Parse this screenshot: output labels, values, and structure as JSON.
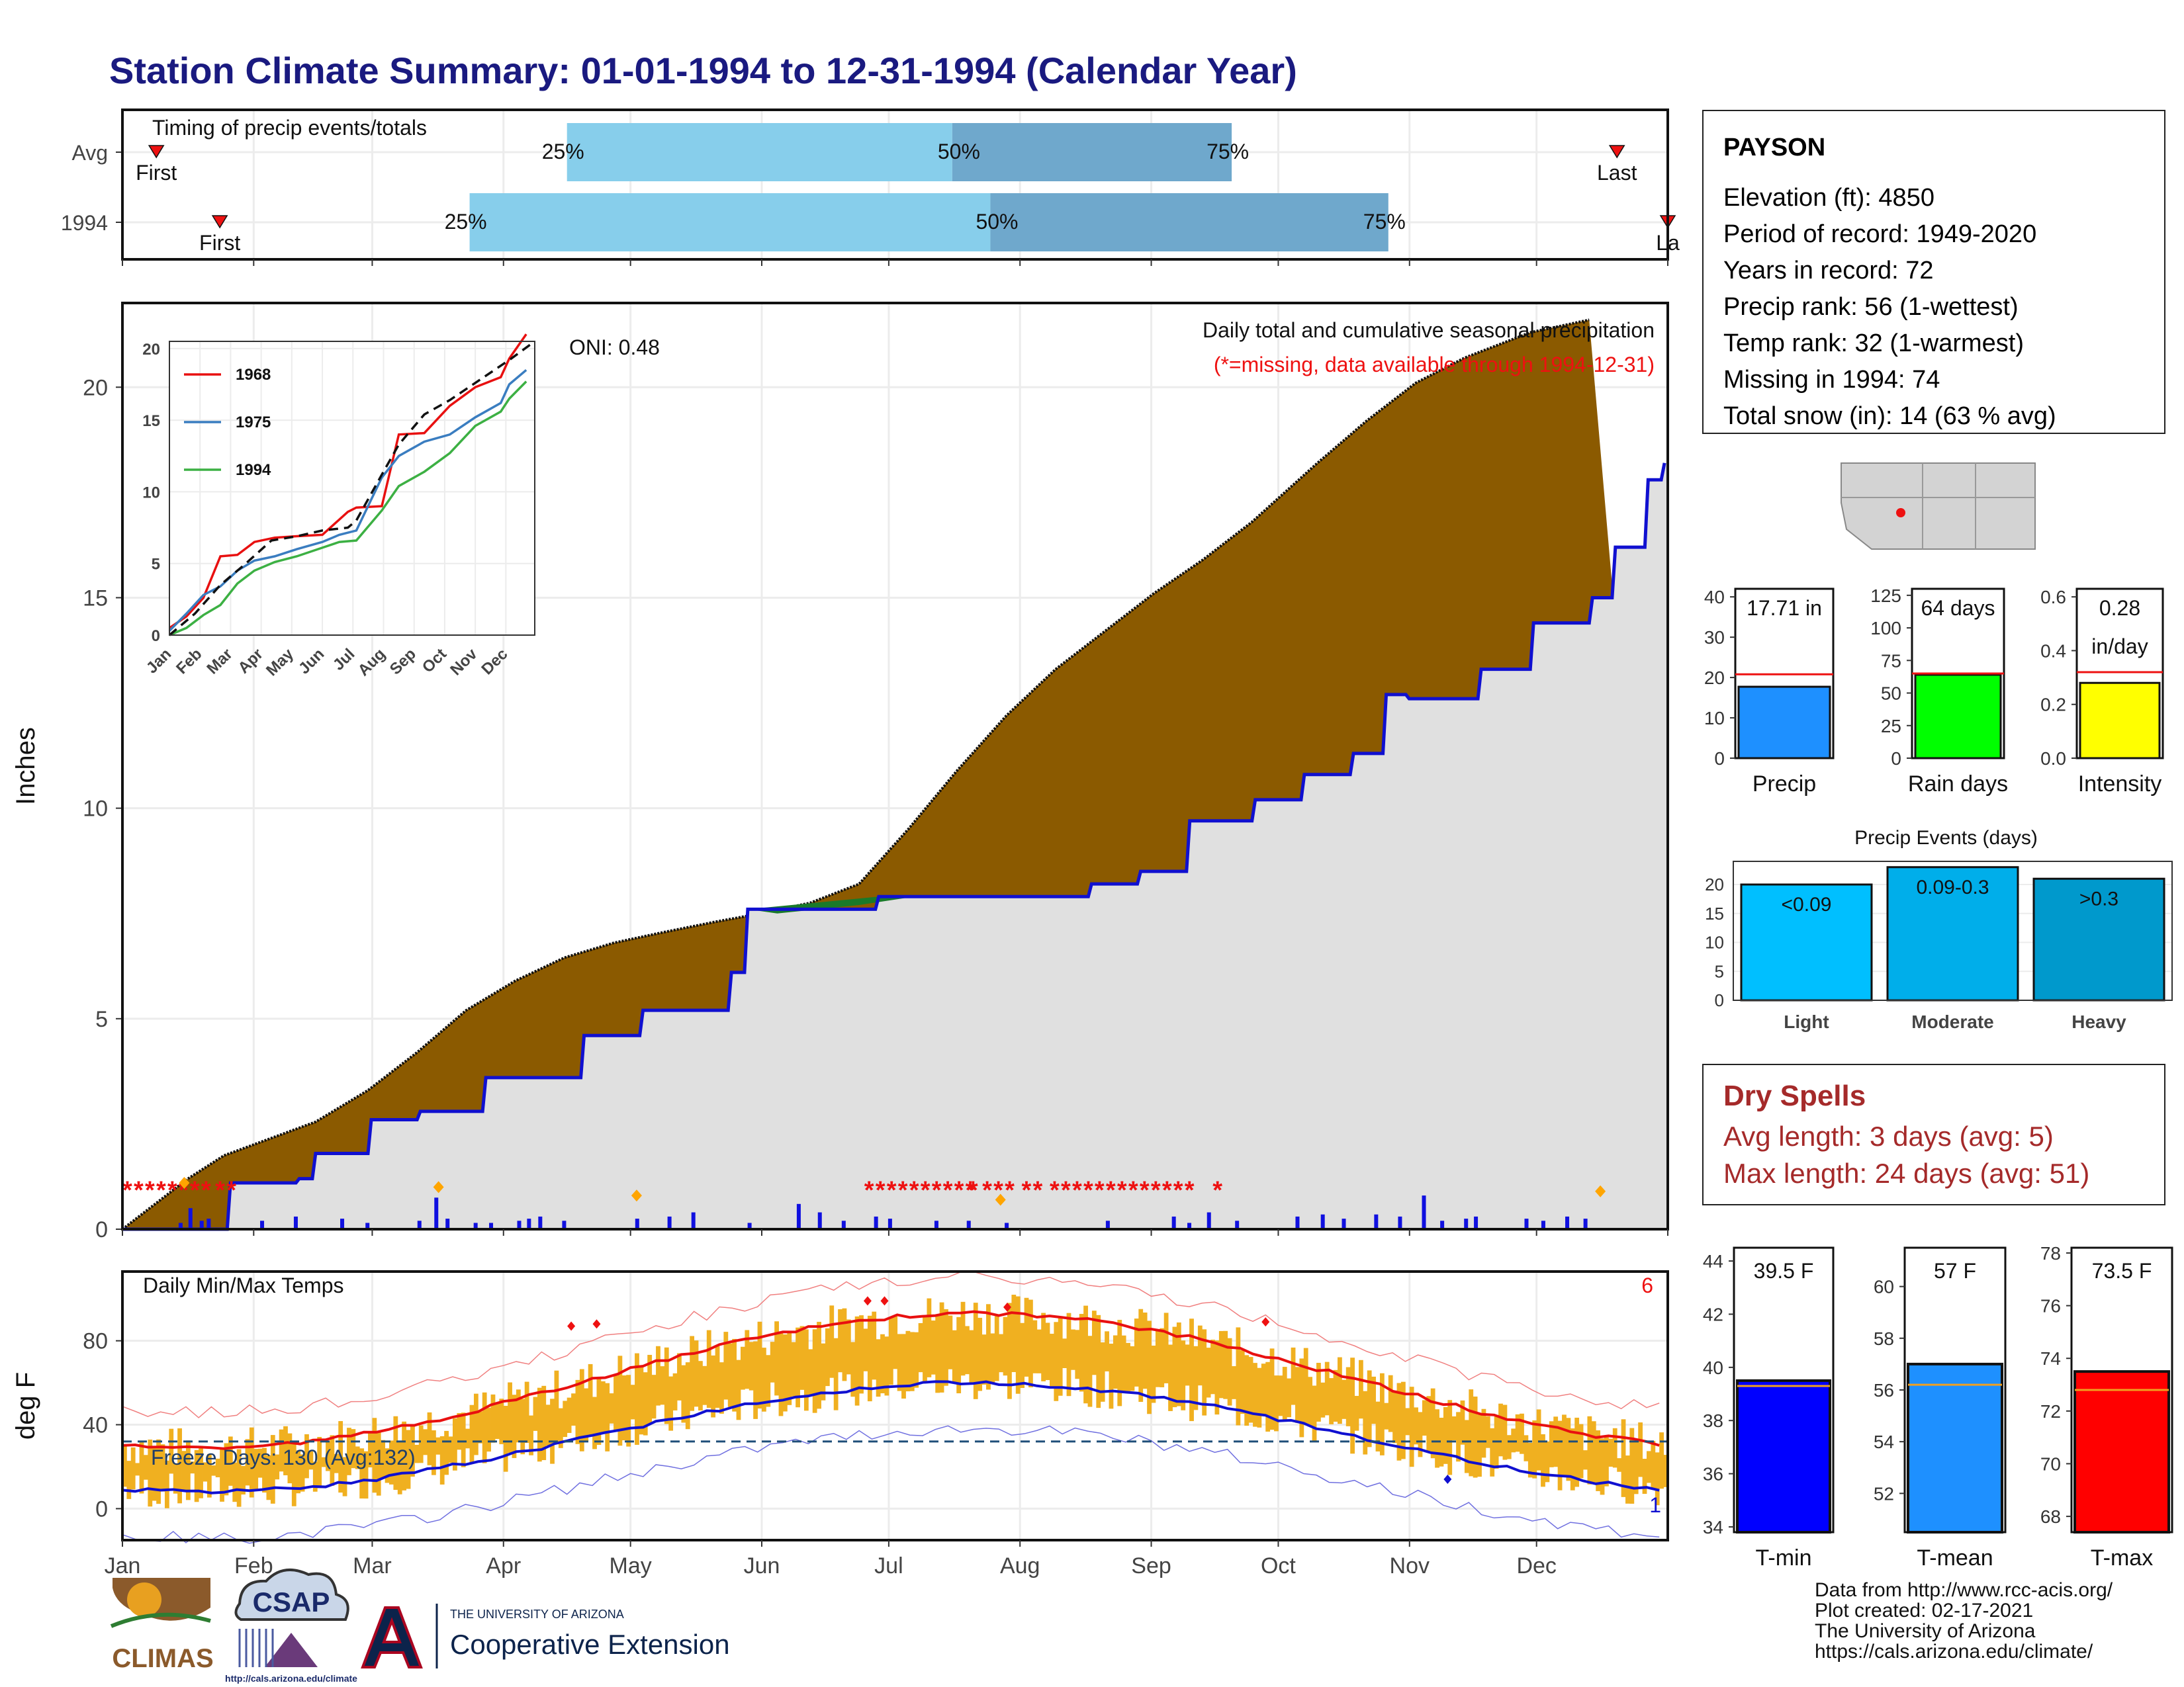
{
  "page_title": "Station Climate Summary: 01-01-1994 to 12-31-1994 (Calendar Year)",
  "colors": {
    "title": "#1a1a80",
    "precip_area": "#8b5a00",
    "cum_line": "#1010d0",
    "grid": "#ebebeb",
    "tmax_bar": "#f0b020",
    "tmax_avg": "#e81010",
    "tmin_avg": "#1010d0",
    "light_blue": "#87ceeb",
    "steel_blue": "#6fa8cc",
    "dry_spell": "#a52a2a",
    "missing": "#ee1111"
  },
  "chart_data": [
    {
      "id": "timing",
      "type": "bar",
      "title": "Timing of precip events/totals",
      "rows": [
        {
          "label": "Avg",
          "first": "First",
          "last": "Last",
          "q25_day": 105,
          "q50_day": 196,
          "q75_day": 262,
          "first_day": 8,
          "last_day": 353
        },
        {
          "label": "1994",
          "first": "First",
          "last": "La",
          "q25_day": 82,
          "q50_day": 205,
          "q75_day": 299,
          "first_day": 23,
          "last_day": 365
        }
      ],
      "pct_labels": [
        "25%",
        "50%",
        "75%"
      ]
    },
    {
      "id": "cumulative",
      "type": "area",
      "ylabel": "Inches",
      "ylim": [
        0,
        22
      ],
      "yticks": [
        0,
        5,
        10,
        15,
        20
      ],
      "annotation_main": "Daily total and cumulative seasonal precipitation",
      "annotation_missing": "(*=missing, data available through 1994-12-31)",
      "oni": "ONI: 0.48",
      "avg_cumulative": [
        [
          0,
          0
        ],
        [
          10,
          0.6
        ],
        [
          20,
          1.2
        ],
        [
          31,
          1.75
        ],
        [
          45,
          2.15
        ],
        [
          59,
          2.55
        ],
        [
          75,
          3.3
        ],
        [
          90,
          4.2
        ],
        [
          105,
          5.2
        ],
        [
          120,
          5.9
        ],
        [
          135,
          6.45
        ],
        [
          150,
          6.8
        ],
        [
          165,
          7.05
        ],
        [
          181,
          7.3
        ],
        [
          195,
          7.5
        ],
        [
          210,
          7.75
        ],
        [
          225,
          8.2
        ],
        [
          240,
          9.5
        ],
        [
          255,
          10.9
        ],
        [
          270,
          12.2
        ],
        [
          285,
          13.3
        ],
        [
          300,
          14.2
        ],
        [
          315,
          15.1
        ],
        [
          330,
          15.9
        ],
        [
          345,
          16.8
        ],
        [
          365,
          18.2
        ],
        [
          380,
          19.2
        ],
        [
          395,
          20.1
        ],
        [
          410,
          20.7
        ],
        [
          430,
          21.3
        ],
        [
          448,
          21.6
        ]
      ],
      "year_cumulative": [
        [
          0,
          0
        ],
        [
          32,
          0
        ],
        [
          33,
          1.1
        ],
        [
          53,
          1.1
        ],
        [
          54,
          1.2
        ],
        [
          58,
          1.2
        ],
        [
          59,
          1.8
        ],
        [
          75,
          1.8
        ],
        [
          76,
          2.6
        ],
        [
          90,
          2.6
        ],
        [
          91,
          2.8
        ],
        [
          110,
          2.8
        ],
        [
          111,
          3.6
        ],
        [
          140,
          3.6
        ],
        [
          141,
          4.6
        ],
        [
          158,
          4.6
        ],
        [
          159,
          5.2
        ],
        [
          185,
          5.2
        ],
        [
          186,
          6.1
        ],
        [
          190,
          6.1
        ],
        [
          191,
          7.6
        ],
        [
          230,
          7.6
        ],
        [
          231,
          7.9
        ],
        [
          295,
          7.9
        ],
        [
          296,
          8.2
        ],
        [
          310,
          8.2
        ],
        [
          311,
          8.5
        ],
        [
          325,
          8.5
        ],
        [
          326,
          9.7
        ],
        [
          345,
          9.7
        ],
        [
          346,
          10.2
        ],
        [
          360,
          10.2
        ],
        [
          361,
          10.8
        ],
        [
          375,
          10.8
        ],
        [
          376,
          11.3
        ],
        [
          385,
          11.3
        ],
        [
          386,
          12.7
        ],
        [
          392,
          12.7
        ],
        [
          393,
          12.6
        ],
        [
          414,
          12.6
        ],
        [
          415,
          13.3
        ],
        [
          430,
          13.3
        ],
        [
          431,
          14.4
        ],
        [
          448,
          14.4
        ],
        [
          449,
          15.0
        ],
        [
          455,
          15.0
        ],
        [
          456,
          16.2
        ],
        [
          465,
          16.2
        ],
        [
          466,
          17.8
        ],
        [
          470,
          17.8
        ],
        [
          471,
          18.2
        ]
      ],
      "daily_bars": [
        [
          40,
          0.15
        ],
        [
          47,
          0.5
        ],
        [
          55,
          0.2
        ],
        [
          60,
          0.25
        ],
        [
          98,
          0.2
        ],
        [
          122,
          0.3
        ],
        [
          155,
          0.25
        ],
        [
          173,
          0.15
        ],
        [
          210,
          0.2
        ],
        [
          222,
          0.75
        ],
        [
          230,
          0.25
        ],
        [
          250,
          0.15
        ],
        [
          261,
          0.15
        ],
        [
          281,
          0.2
        ],
        [
          288,
          0.25
        ],
        [
          296,
          0.3
        ],
        [
          313,
          0.2
        ],
        [
          365,
          0.25
        ],
        [
          388,
          0.3
        ],
        [
          405,
          0.4
        ],
        [
          445,
          0.15
        ],
        [
          480,
          0.6
        ],
        [
          495,
          0.4
        ],
        [
          512,
          0.2
        ],
        [
          535,
          0.3
        ],
        [
          545,
          0.25
        ],
        [
          578,
          0.2
        ],
        [
          601,
          0.2
        ],
        [
          628,
          0.15
        ],
        [
          700,
          0.2
        ],
        [
          747,
          0.3
        ],
        [
          758,
          0.15
        ],
        [
          772,
          0.4
        ],
        [
          792,
          0.2
        ],
        [
          835,
          0.3
        ],
        [
          853,
          0.35
        ],
        [
          868,
          0.25
        ],
        [
          891,
          0.35
        ],
        [
          908,
          0.3
        ],
        [
          925,
          0.8
        ],
        [
          938,
          0.2
        ],
        [
          955,
          0.25
        ],
        [
          962,
          0.3
        ],
        [
          998,
          0.25
        ],
        [
          1010,
          0.2
        ],
        [
          1027,
          0.3
        ],
        [
          1040,
          0.25
        ]
      ],
      "missing_runs": [
        [
          0,
          60
        ],
        [
          66,
          80
        ],
        [
          528,
          560
        ],
        [
          568,
          600
        ],
        [
          602,
          608
        ],
        [
          612,
          632
        ],
        [
          640,
          648
        ],
        [
          660,
          725
        ],
        [
          732,
          760
        ],
        [
          776,
          782
        ]
      ],
      "diamonds": [
        [
          44,
          1.1
        ],
        [
          225,
          1.0
        ],
        [
          366,
          0.8
        ],
        [
          625,
          0.7
        ],
        [
          1052,
          0.9
        ]
      ]
    },
    {
      "id": "inset",
      "type": "line",
      "series": [
        {
          "name": "1968",
          "color": "#e81010",
          "values": [
            [
              0,
              0.5
            ],
            [
              10,
              1.3
            ],
            [
              20,
              2.6
            ],
            [
              30,
              5.5
            ],
            [
              40,
              5.6
            ],
            [
              50,
              6.5
            ],
            [
              62,
              6.8
            ],
            [
              75,
              6.9
            ],
            [
              90,
              7
            ],
            [
              105,
              8.6
            ],
            [
              110,
              8.9
            ],
            [
              125,
              9
            ],
            [
              135,
              14
            ],
            [
              150,
              14.1
            ],
            [
              165,
              16
            ],
            [
              180,
              17.3
            ],
            [
              195,
              18
            ],
            [
              200,
              19.3
            ],
            [
              210,
              21
            ]
          ]
        },
        {
          "name": "1975",
          "color": "#3a7dc0",
          "values": [
            [
              0,
              0.3
            ],
            [
              10,
              1.5
            ],
            [
              20,
              2.8
            ],
            [
              30,
              3.4
            ],
            [
              40,
              4.5
            ],
            [
              50,
              5.2
            ],
            [
              62,
              5.5
            ],
            [
              75,
              6
            ],
            [
              90,
              6.5
            ],
            [
              100,
              7
            ],
            [
              110,
              7.3
            ],
            [
              125,
              11
            ],
            [
              135,
              12.5
            ],
            [
              150,
              13.5
            ],
            [
              165,
              14
            ],
            [
              180,
              15.2
            ],
            [
              195,
              16.2
            ],
            [
              200,
              17.5
            ],
            [
              210,
              18.5
            ]
          ]
        },
        {
          "name": "1994",
          "color": "#3cb043",
          "values": [
            [
              0,
              0
            ],
            [
              10,
              0.5
            ],
            [
              20,
              1.4
            ],
            [
              30,
              2.1
            ],
            [
              40,
              3.6
            ],
            [
              50,
              4.5
            ],
            [
              62,
              5.1
            ],
            [
              75,
              5.5
            ],
            [
              90,
              6.1
            ],
            [
              100,
              6.5
            ],
            [
              110,
              6.6
            ],
            [
              125,
              8.7
            ],
            [
              135,
              10.4
            ],
            [
              150,
              11.4
            ],
            [
              165,
              12.7
            ],
            [
              180,
              14.6
            ],
            [
              195,
              15.6
            ],
            [
              200,
              16.5
            ],
            [
              210,
              17.7
            ]
          ]
        }
      ],
      "avg": [
        [
          0,
          0
        ],
        [
          15,
          1.5
        ],
        [
          30,
          3.5
        ],
        [
          45,
          5
        ],
        [
          60,
          6.6
        ],
        [
          75,
          6.9
        ],
        [
          90,
          7.3
        ],
        [
          105,
          7.5
        ],
        [
          110,
          8
        ],
        [
          125,
          11.2
        ],
        [
          135,
          13.3
        ],
        [
          150,
          15.4
        ],
        [
          165,
          16.4
        ],
        [
          180,
          17.6
        ],
        [
          200,
          19.2
        ],
        [
          215,
          20.5
        ]
      ],
      "xticks": [
        "Jan",
        "Feb",
        "Mar",
        "Apr",
        "May",
        "Jun",
        "Jul",
        "Aug",
        "Sep",
        "Oct",
        "Nov",
        "Dec"
      ],
      "yticks": [
        0,
        5,
        10,
        15,
        20
      ]
    },
    {
      "id": "temps",
      "type": "bar",
      "title": "Daily Min/Max Temps",
      "ylabel": "deg F",
      "yticks": [
        0,
        40,
        80
      ],
      "ylim": [
        -15,
        113
      ],
      "record_count": "6",
      "record_count_low": "1",
      "freeze_label": "Freeze Days: 130 (Avg:132)",
      "freeze_line": 32,
      "xticks": [
        "Jan",
        "Feb",
        "Mar",
        "Apr",
        "May",
        "Jun",
        "Jul",
        "Aug",
        "Sep",
        "Oct",
        "Nov",
        "Dec"
      ]
    },
    {
      "id": "precip_summary",
      "type": "bar",
      "panels": [
        {
          "label": "Precip",
          "value_text": "17.71 in",
          "value": 17.71,
          "avg": 20.8,
          "ylim": [
            0,
            42
          ],
          "yticks": [
            0,
            10,
            20,
            30,
            40
          ],
          "color": "#1e90ff"
        },
        {
          "label": "Rain days",
          "value_text": "64 days",
          "value": 64,
          "avg": 65,
          "ylim": [
            0,
            130
          ],
          "yticks": [
            0,
            25,
            50,
            75,
            100,
            125
          ],
          "color": "#00ff00"
        },
        {
          "label": "Intensity",
          "value_text": "0.28\nin/day",
          "value": 0.28,
          "avg": 0.32,
          "ylim": [
            0,
            0.63
          ],
          "yticks": [
            0.0,
            0.2,
            0.4,
            0.6
          ],
          "color": "#ffff00"
        }
      ]
    },
    {
      "id": "precip_events",
      "type": "bar",
      "title": "Precip Events (days)",
      "categories": [
        "Light",
        "Moderate",
        "Heavy"
      ],
      "top_labels": [
        "<0.09",
        "0.09-0.3",
        ">0.3"
      ],
      "values": [
        20,
        23,
        21
      ],
      "ylim": [
        0,
        24
      ],
      "yticks": [
        0,
        5,
        10,
        15,
        20
      ],
      "colors": [
        "#00bfff",
        "#00aeea",
        "#0099cc"
      ]
    },
    {
      "id": "temp_summary",
      "type": "bar",
      "panels": [
        {
          "label": "T-min",
          "value_text": "39.5 F",
          "value": 39.5,
          "avg": 39.3,
          "ylim": [
            33.8,
            44.5
          ],
          "yticks": [
            34,
            36,
            38,
            40,
            42,
            44
          ],
          "color": "#0000ff"
        },
        {
          "label": "T-mean",
          "value_text": "57 F",
          "value": 57,
          "avg": 56.2,
          "ylim": [
            50.5,
            61.5
          ],
          "yticks": [
            52,
            54,
            56,
            58,
            60
          ],
          "color": "#1e90ff"
        },
        {
          "label": "T-max",
          "value_text": "73.5 F",
          "value": 73.5,
          "avg": 72.8,
          "ylim": [
            67.4,
            78.2
          ],
          "yticks": [
            68,
            70,
            72,
            74,
            76,
            78
          ],
          "color": "#ff0000"
        }
      ]
    }
  ],
  "station": {
    "name": "PAYSON",
    "lines": [
      "Elevation (ft): 4850",
      "Period of record: 1949-2020",
      "Years in record: 72",
      "Precip rank: 56 (1-wettest)",
      "Temp rank: 32 (1-warmest)",
      "Missing in 1994: 74",
      "Total snow (in): 14 (63 % avg)"
    ]
  },
  "dry_spells": {
    "title": "Dry Spells",
    "avg_line": "Avg length: 3 days (avg: 5)",
    "max_line": "Max length: 24 days (avg: 51)"
  },
  "footer": {
    "lines": [
      "Data from http://www.rcc-acis.org/",
      "Plot created: 02-17-2021",
      "The University of Arizona",
      "https://cals.arizona.edu/climate/"
    ]
  },
  "logos": {
    "climas": "CLIMAS",
    "csap": "CSAP",
    "csap_url": "http://cals.arizona.edu/climate",
    "ua_small": "THE UNIVERSITY OF ARIZONA",
    "ua_big": "Cooperative Extension"
  }
}
